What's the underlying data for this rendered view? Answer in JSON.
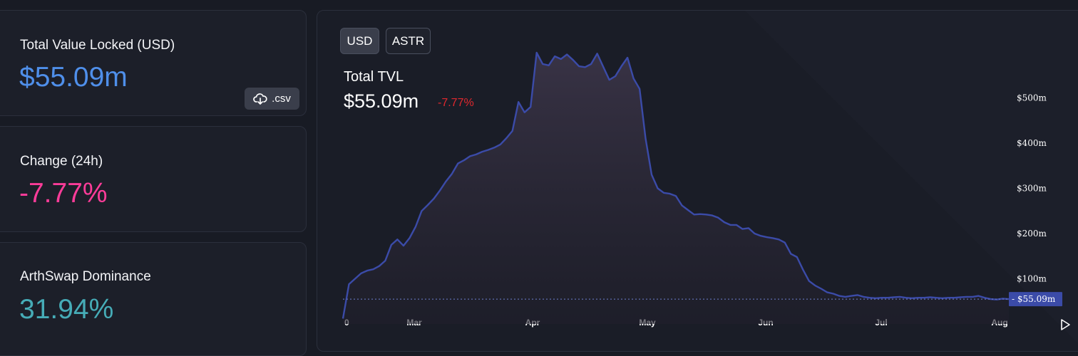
{
  "stats": {
    "tvl": {
      "label": "Total Value Locked (USD)",
      "value": "$55.09m",
      "color": "#4f8fea"
    },
    "change": {
      "label": "Change (24h)",
      "value": "-7.77%",
      "color": "#fd3c99"
    },
    "dominance": {
      "label": "ArthSwap Dominance",
      "value": "31.94%",
      "color": "#46acb7"
    }
  },
  "csv_button": {
    "label": ".csv",
    "icon": "cloud-download-icon"
  },
  "chart_panel": {
    "toggles": [
      "USD",
      "ASTR"
    ],
    "active_toggle": "USD",
    "title": "Total TVL",
    "value": "$55.09m",
    "change": "-7.77%",
    "change_color": "#e0282e",
    "last_value_label": "$55.09m",
    "play_icon": "play-icon"
  },
  "chart_data": {
    "type": "area",
    "title": "Total TVL",
    "xlabel": "",
    "ylabel": "",
    "x_ticks": [
      "0",
      "Mar",
      "Apr",
      "May",
      "Jun",
      "Jul",
      "Aug"
    ],
    "y_ticks": [
      "$100m",
      "$200m",
      "$300m",
      "$400m",
      "$500m"
    ],
    "ylim": [
      0,
      600
    ],
    "grid": false,
    "line_color": "#3b4ba8",
    "series": [
      {
        "values": [
          12,
          88,
          100,
          112,
          118,
          121,
          128,
          140,
          175,
          187,
          173,
          190,
          215,
          250,
          263,
          277,
          295,
          315,
          332,
          355,
          362,
          371,
          375,
          381,
          385,
          390,
          397,
          411,
          427,
          491,
          468,
          480,
          600,
          575,
          572,
          592,
          586,
          596,
          584,
          570,
          568,
          575,
          598,
          569,
          540,
          548,
          570,
          589,
          543,
          520,
          410,
          330,
          300,
          290,
          288,
          283,
          262,
          252,
          242,
          243,
          242,
          240,
          235,
          225,
          219,
          219,
          210,
          212,
          200,
          195,
          192,
          190,
          187,
          180,
          155,
          148,
          120,
          95,
          85,
          78,
          70,
          67,
          62,
          60,
          62,
          64,
          60,
          58,
          57,
          58,
          58,
          59,
          60,
          58,
          57,
          58,
          58,
          59,
          58,
          57,
          58,
          58,
          59,
          60,
          60,
          62,
          58,
          55,
          54,
          56,
          55
        ]
      }
    ]
  }
}
